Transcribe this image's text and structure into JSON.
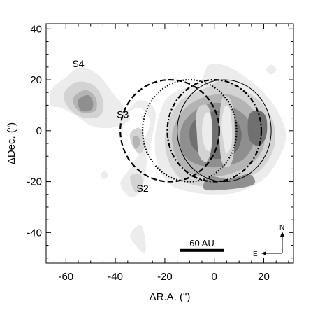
{
  "chart_data": {
    "type": "contour",
    "xlabel": "ΔR.A. (\")",
    "ylabel": "ΔDec. (\")",
    "xlim": [
      -68,
      32
    ],
    "ylim": [
      -52,
      42
    ],
    "x_ticks": [
      -60,
      -40,
      -20,
      0,
      20
    ],
    "y_ticks": [
      -40,
      -20,
      0,
      20,
      40
    ],
    "x_tick_labels": [
      "-60",
      "-40",
      "-20",
      "0",
      "20"
    ],
    "y_tick_labels": [
      "-40",
      "-20",
      "0",
      "20",
      "40"
    ],
    "grid": false,
    "contour_colors": [
      "#ececec",
      "#d3d3d3",
      "#b4b4b4",
      "#8f8f8f",
      "#707070"
    ],
    "sources": [
      {
        "label": "S4",
        "x": -55,
        "y": 25
      },
      {
        "label": "S3",
        "x": -37,
        "y": 5
      },
      {
        "label": "S2",
        "x": -29,
        "y": -24
      }
    ],
    "ellipses": [
      {
        "style": "dashed",
        "cx": -18,
        "cy": 0,
        "rx": 20,
        "ry": 20
      },
      {
        "style": "dotted",
        "cx": -10,
        "cy": 0,
        "rx": 19,
        "ry": 20
      },
      {
        "style": "dash-dot",
        "cx": 0,
        "cy": 0,
        "rx": 19,
        "ry": 20
      },
      {
        "style": "solid",
        "cx": 4,
        "cy": 0,
        "rx": 19,
        "ry": 20
      }
    ],
    "scalebar": {
      "label": "60 AU",
      "x0": -14,
      "x1": 4,
      "y": -47
    },
    "compass": {
      "north": "N",
      "east": "E"
    }
  }
}
